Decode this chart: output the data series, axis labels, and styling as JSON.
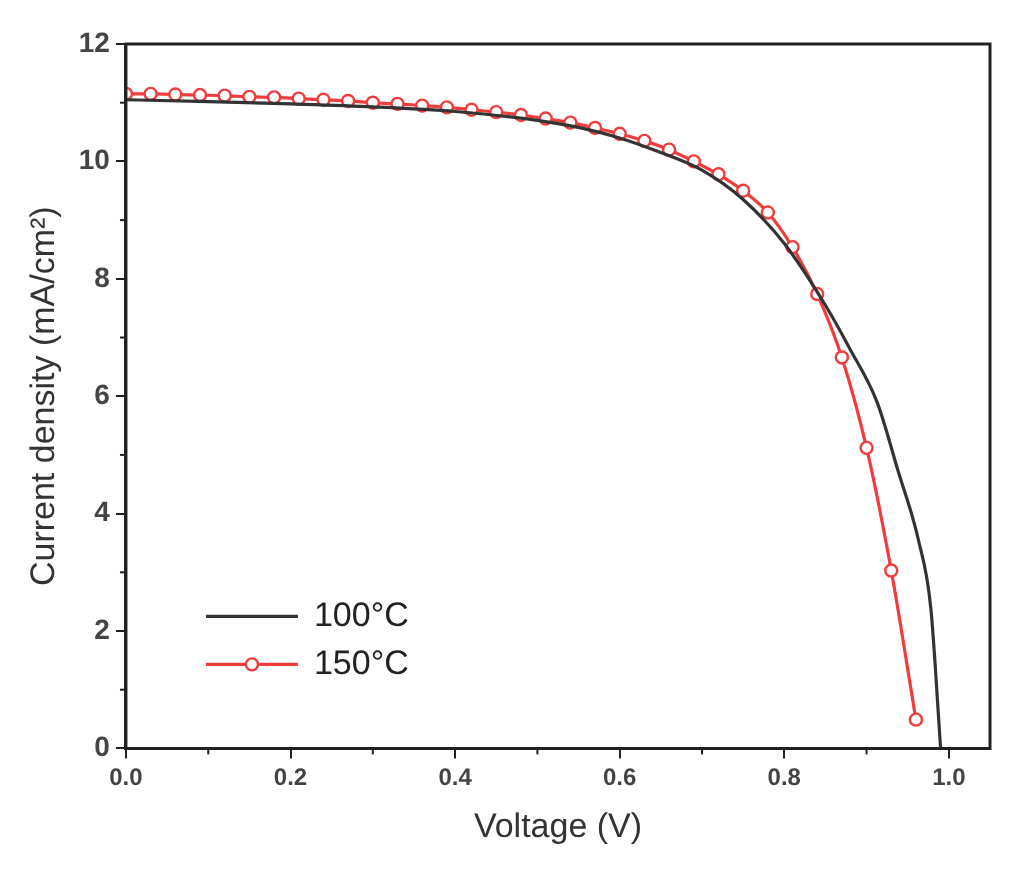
{
  "chart_data": {
    "type": "line",
    "xlabel": "Voltage (V)",
    "ylabel": "Current density (mA/cm²)",
    "xlim": [
      0,
      1.05
    ],
    "xticks": [
      {
        "value": 0,
        "label": "0.0"
      },
      0.2,
      0.4,
      0.6,
      0.8,
      {
        "value": 1,
        "label": "1.0"
      }
    ],
    "ylim": [
      0,
      12
    ],
    "yticks": [
      0,
      2,
      4,
      6,
      8,
      10,
      12
    ],
    "grid": false,
    "legend": "bottom left",
    "series": [
      {
        "name": "100°C",
        "color": "#333333",
        "marker": "none",
        "x": [
          0,
          0.1,
          0.2,
          0.3,
          0.4,
          0.5,
          0.55,
          0.6,
          0.65,
          0.7,
          0.75,
          0.8,
          0.85,
          0.88,
          0.913,
          0.938,
          0.963,
          0.978,
          0.99
        ],
        "values": [
          11.05,
          11.02,
          10.98,
          10.93,
          10.85,
          10.7,
          10.58,
          10.4,
          10.15,
          9.85,
          9.35,
          8.6,
          7.55,
          6.8,
          5.89,
          4.74,
          3.55,
          2.4,
          0
        ]
      },
      {
        "name": "150°C",
        "color": "#f03c3c",
        "marker": "circle",
        "x": [
          0,
          0.03,
          0.06,
          0.09,
          0.12,
          0.15,
          0.18,
          0.21,
          0.24,
          0.27,
          0.3,
          0.33,
          0.36,
          0.39,
          0.42,
          0.45,
          0.48,
          0.51,
          0.54,
          0.57,
          0.6,
          0.63,
          0.66,
          0.69,
          0.72,
          0.75,
          0.78,
          0.81,
          0.84,
          0.87,
          0.9,
          0.93,
          0.96
        ],
        "values": [
          11.15,
          11.15,
          11.14,
          11.13,
          11.12,
          11.1,
          11.09,
          11.07,
          11.05,
          11.03,
          11.0,
          10.98,
          10.95,
          10.92,
          10.88,
          10.84,
          10.79,
          10.73,
          10.66,
          10.57,
          10.47,
          10.35,
          10.2,
          10.0,
          9.78,
          9.5,
          9.13,
          8.54,
          7.74,
          6.66,
          5.12,
          3.03,
          0.49
        ]
      }
    ]
  }
}
